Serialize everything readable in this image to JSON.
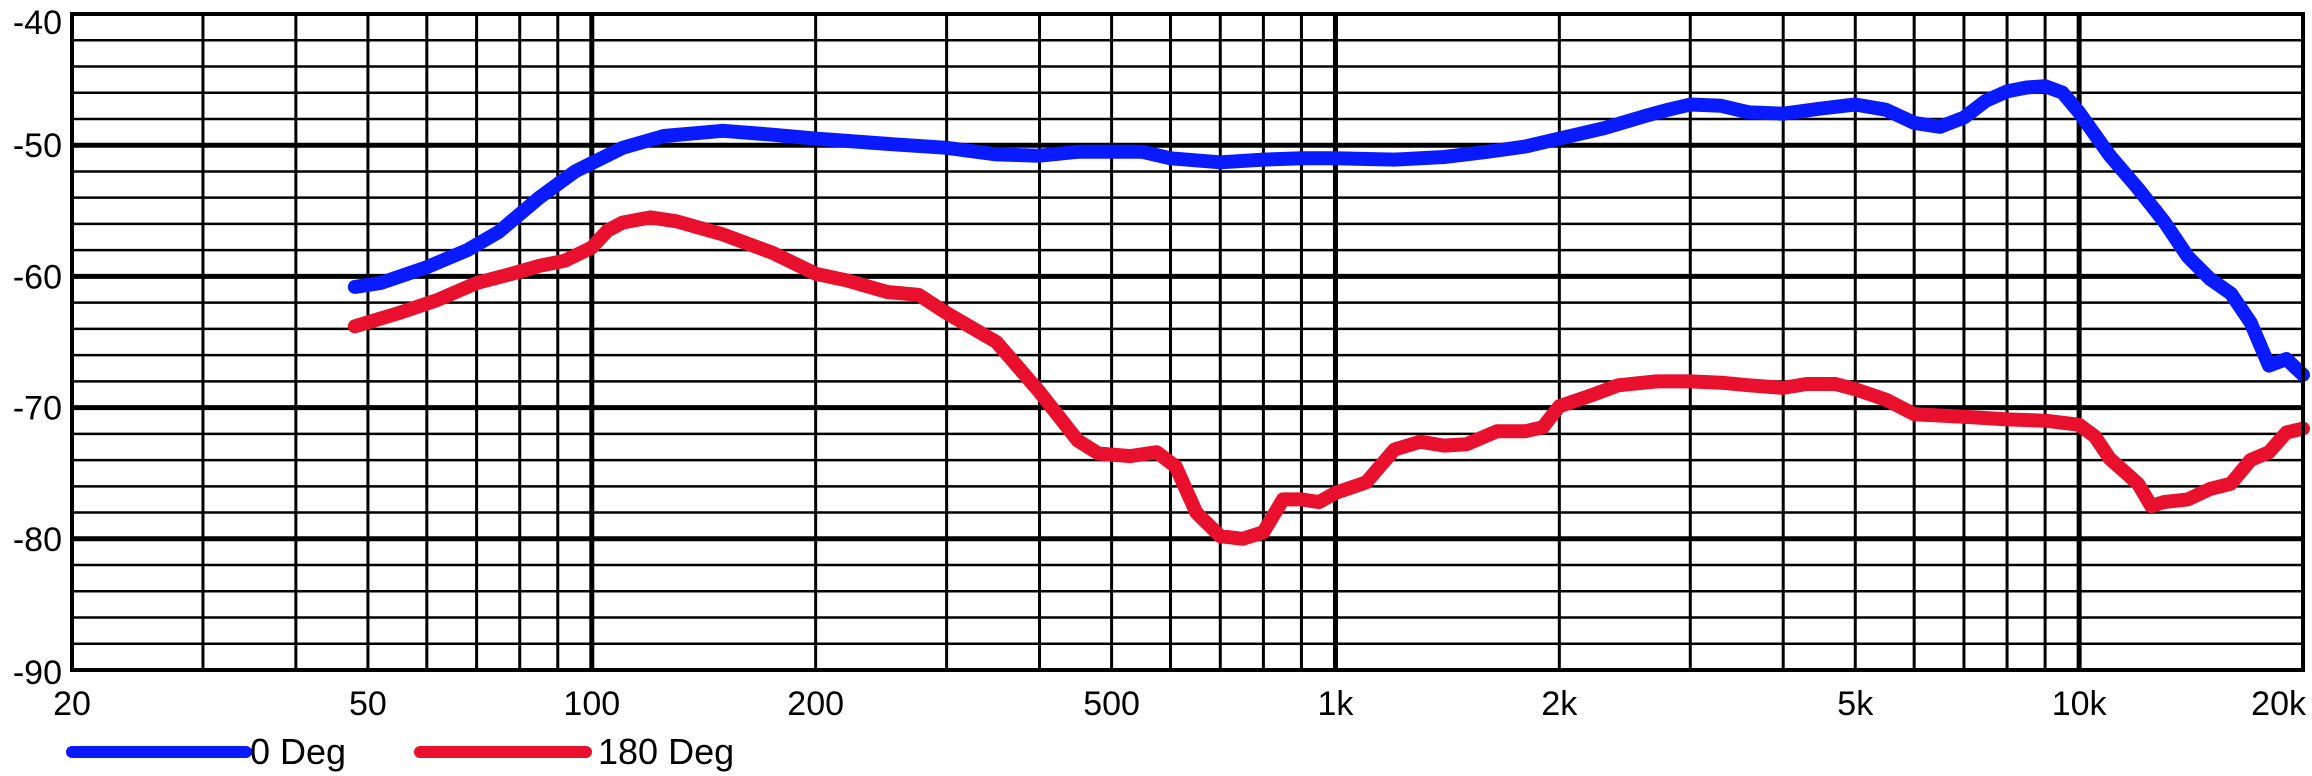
{
  "chart_data": {
    "type": "line",
    "title": "",
    "xlabel": "",
    "ylabel": "",
    "x_scale": "log",
    "xlim": [
      20,
      20000
    ],
    "ylim": [
      -90,
      -40
    ],
    "grid": true,
    "legend_position": "bottom-left",
    "x_ticks": [
      {
        "value": 20,
        "label": "20"
      },
      {
        "value": 50,
        "label": "50"
      },
      {
        "value": 100,
        "label": "100"
      },
      {
        "value": 200,
        "label": "200"
      },
      {
        "value": 500,
        "label": "500"
      },
      {
        "value": 1000,
        "label": "1k"
      },
      {
        "value": 2000,
        "label": "2k"
      },
      {
        "value": 5000,
        "label": "5k"
      },
      {
        "value": 10000,
        "label": "10k"
      },
      {
        "value": 20000,
        "label": "20k"
      }
    ],
    "y_ticks": [
      {
        "value": -40,
        "label": "-40"
      },
      {
        "value": -50,
        "label": "-50"
      },
      {
        "value": -60,
        "label": "-60"
      },
      {
        "value": -70,
        "label": "-70"
      },
      {
        "value": -80,
        "label": "-80"
      },
      {
        "value": -90,
        "label": "-90"
      }
    ],
    "series": [
      {
        "name": "0 Deg",
        "color": "#0a1aff",
        "points": [
          [
            48,
            -60.8
          ],
          [
            52,
            -60.5
          ],
          [
            60,
            -59.3
          ],
          [
            68,
            -58.0
          ],
          [
            75,
            -56.6
          ],
          [
            85,
            -54.0
          ],
          [
            95,
            -52.0
          ],
          [
            110,
            -50.2
          ],
          [
            125,
            -49.3
          ],
          [
            150,
            -48.9
          ],
          [
            175,
            -49.2
          ],
          [
            200,
            -49.5
          ],
          [
            250,
            -49.9
          ],
          [
            300,
            -50.2
          ],
          [
            350,
            -50.7
          ],
          [
            400,
            -50.8
          ],
          [
            450,
            -50.5
          ],
          [
            500,
            -50.5
          ],
          [
            550,
            -50.5
          ],
          [
            600,
            -51.0
          ],
          [
            700,
            -51.3
          ],
          [
            800,
            -51.1
          ],
          [
            900,
            -51.0
          ],
          [
            1000,
            -51.0
          ],
          [
            1200,
            -51.1
          ],
          [
            1400,
            -50.9
          ],
          [
            1600,
            -50.5
          ],
          [
            1800,
            -50.1
          ],
          [
            2000,
            -49.5
          ],
          [
            2300,
            -48.7
          ],
          [
            2600,
            -47.8
          ],
          [
            2800,
            -47.3
          ],
          [
            3000,
            -46.9
          ],
          [
            3300,
            -47.0
          ],
          [
            3600,
            -47.5
          ],
          [
            4000,
            -47.6
          ],
          [
            4500,
            -47.2
          ],
          [
            5000,
            -46.9
          ],
          [
            5500,
            -47.3
          ],
          [
            6000,
            -48.3
          ],
          [
            6500,
            -48.6
          ],
          [
            7000,
            -47.9
          ],
          [
            7500,
            -46.6
          ],
          [
            8000,
            -45.9
          ],
          [
            8500,
            -45.6
          ],
          [
            9000,
            -45.5
          ],
          [
            9500,
            -46.0
          ],
          [
            10000,
            -47.5
          ],
          [
            11000,
            -50.8
          ],
          [
            12000,
            -53.3
          ],
          [
            13000,
            -55.8
          ],
          [
            14000,
            -58.5
          ],
          [
            15000,
            -60.2
          ],
          [
            16000,
            -61.3
          ],
          [
            17000,
            -63.5
          ],
          [
            18000,
            -66.8
          ],
          [
            19000,
            -66.3
          ],
          [
            20000,
            -67.5
          ]
        ]
      },
      {
        "name": "180 Deg",
        "color": "#e8102c",
        "points": [
          [
            48,
            -63.8
          ],
          [
            55,
            -62.8
          ],
          [
            62,
            -61.8
          ],
          [
            70,
            -60.5
          ],
          [
            78,
            -59.8
          ],
          [
            85,
            -59.2
          ],
          [
            92,
            -58.8
          ],
          [
            100,
            -57.8
          ],
          [
            105,
            -56.5
          ],
          [
            110,
            -55.9
          ],
          [
            120,
            -55.5
          ],
          [
            130,
            -55.8
          ],
          [
            150,
            -56.8
          ],
          [
            175,
            -58.2
          ],
          [
            200,
            -59.8
          ],
          [
            220,
            -60.3
          ],
          [
            250,
            -61.2
          ],
          [
            275,
            -61.4
          ],
          [
            300,
            -62.8
          ],
          [
            350,
            -65.0
          ],
          [
            400,
            -68.8
          ],
          [
            450,
            -72.5
          ],
          [
            480,
            -73.5
          ],
          [
            530,
            -73.7
          ],
          [
            575,
            -73.4
          ],
          [
            610,
            -74.5
          ],
          [
            650,
            -78.0
          ],
          [
            700,
            -79.8
          ],
          [
            750,
            -80.0
          ],
          [
            800,
            -79.5
          ],
          [
            850,
            -77.0
          ],
          [
            900,
            -77.0
          ],
          [
            950,
            -77.2
          ],
          [
            1000,
            -76.5
          ],
          [
            1100,
            -75.7
          ],
          [
            1200,
            -73.2
          ],
          [
            1300,
            -72.6
          ],
          [
            1400,
            -72.9
          ],
          [
            1500,
            -72.8
          ],
          [
            1650,
            -71.8
          ],
          [
            1800,
            -71.8
          ],
          [
            1900,
            -71.5
          ],
          [
            2000,
            -69.9
          ],
          [
            2200,
            -69.1
          ],
          [
            2400,
            -68.3
          ],
          [
            2700,
            -68.0
          ],
          [
            3000,
            -68.0
          ],
          [
            3300,
            -68.1
          ],
          [
            3600,
            -68.3
          ],
          [
            4000,
            -68.5
          ],
          [
            4300,
            -68.2
          ],
          [
            4700,
            -68.2
          ],
          [
            5000,
            -68.6
          ],
          [
            5500,
            -69.4
          ],
          [
            6000,
            -70.5
          ],
          [
            7000,
            -70.7
          ],
          [
            8000,
            -70.9
          ],
          [
            9000,
            -71.0
          ],
          [
            10000,
            -71.3
          ],
          [
            10500,
            -72.2
          ],
          [
            11000,
            -73.9
          ],
          [
            12000,
            -75.8
          ],
          [
            12500,
            -77.5
          ],
          [
            13000,
            -77.2
          ],
          [
            14000,
            -77.0
          ],
          [
            15000,
            -76.2
          ],
          [
            16000,
            -75.8
          ],
          [
            17000,
            -74.0
          ],
          [
            18000,
            -73.4
          ],
          [
            19000,
            -71.9
          ],
          [
            20000,
            -71.6
          ]
        ]
      }
    ]
  },
  "legend": [
    {
      "label": "0 Deg",
      "color": "#0a1aff"
    },
    {
      "label": "180 Deg",
      "color": "#e8102c"
    }
  ]
}
